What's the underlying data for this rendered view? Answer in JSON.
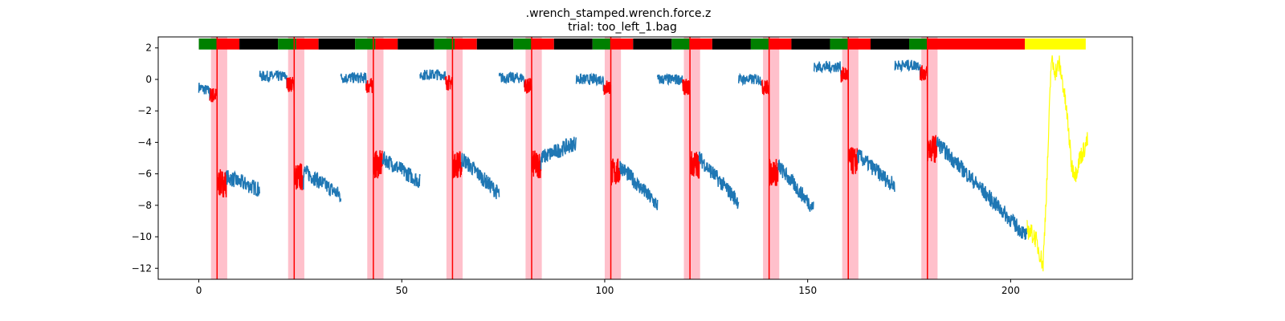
{
  "chart_data": {
    "type": "line",
    "title": ".wrench_stamped.wrench.force.z",
    "subtitle": "trial: too_left_1.bag",
    "xlim": [
      -10,
      230
    ],
    "ylim": [
      -12.7,
      2.7
    ],
    "xticks": [
      0,
      50,
      100,
      150,
      200
    ],
    "yticks": [
      2,
      0,
      -2,
      -4,
      -6,
      -8,
      -10,
      -12
    ],
    "grid": false,
    "colors": {
      "main": "#1f77b4",
      "highlight": "#ff0000",
      "tail": "#ffff00",
      "span": "#ffc0cb",
      "vline": "#ff0000",
      "bar_green": "#008000",
      "bar_red": "#ff0000",
      "bar_black": "#000000",
      "bar_yellow": "#ffff00"
    },
    "cycles": [
      {
        "start": 0.0,
        "pre": -0.5,
        "contact": 4.5,
        "post": -6.2,
        "drift_end": -7.0,
        "jump_x": 15.0,
        "span": [
          3.0,
          7.0
        ]
      },
      {
        "start": 15.0,
        "pre": 0.2,
        "contact": 23.5,
        "post": -5.8,
        "drift_end": -7.4,
        "jump_x": 35.0,
        "span": [
          22.0,
          26.0
        ]
      },
      {
        "start": 35.0,
        "pre": 0.1,
        "contact": 43.0,
        "post": -5.0,
        "drift_end": -6.5,
        "jump_x": 54.5,
        "span": [
          41.5,
          45.5
        ]
      },
      {
        "start": 54.5,
        "pre": 0.3,
        "contact": 62.5,
        "post": -5.0,
        "drift_end": -7.3,
        "jump_x": 74.0,
        "span": [
          61.0,
          65.0
        ]
      },
      {
        "start": 74.0,
        "pre": 0.1,
        "contact": 82.0,
        "post": -5.0,
        "drift_end": -4.0,
        "jump_x": 93.0,
        "span": [
          80.5,
          84.5
        ]
      },
      {
        "start": 93.0,
        "pre": 0.0,
        "contact": 101.5,
        "post": -5.5,
        "drift_end": -8.0,
        "jump_x": 113.0,
        "span": [
          100.0,
          104.0
        ]
      },
      {
        "start": 113.0,
        "pre": 0.0,
        "contact": 121.0,
        "post": -5.0,
        "drift_end": -7.8,
        "jump_x": 133.0,
        "span": [
          119.5,
          123.5
        ]
      },
      {
        "start": 133.0,
        "pre": 0.0,
        "contact": 140.5,
        "post": -5.5,
        "drift_end": -8.2,
        "jump_x": 151.5,
        "span": [
          139.0,
          143.0
        ]
      },
      {
        "start": 151.5,
        "pre": 0.8,
        "contact": 160.0,
        "post": -4.8,
        "drift_end": -6.8,
        "jump_x": 171.5,
        "span": [
          158.5,
          162.5
        ]
      },
      {
        "start": 171.5,
        "pre": 0.9,
        "contact": 179.5,
        "post": -4.0,
        "drift_end": -10.0,
        "jump_x": 204.0,
        "span": [
          178.0,
          182.0
        ]
      }
    ],
    "tail": {
      "x": [
        204,
        206,
        208,
        209,
        210,
        211,
        212,
        213,
        214,
        215,
        216,
        217,
        218,
        219
      ],
      "y": [
        -9.5,
        -10.0,
        -11.8,
        -6.0,
        1.2,
        0.5,
        1.0,
        -0.5,
        -2.5,
        -5.5,
        -6.0,
        -5.0,
        -4.5,
        -3.8
      ]
    },
    "status_bar": [
      {
        "from": 0,
        "to": 4.5,
        "color": "green"
      },
      {
        "from": 4.5,
        "to": 10,
        "color": "red"
      },
      {
        "from": 10,
        "to": 19.5,
        "color": "black"
      },
      {
        "from": 19.5,
        "to": 24,
        "color": "green"
      },
      {
        "from": 24,
        "to": 29.5,
        "color": "red"
      },
      {
        "from": 29.5,
        "to": 38.5,
        "color": "black"
      },
      {
        "from": 38.5,
        "to": 43.5,
        "color": "green"
      },
      {
        "from": 43.5,
        "to": 49,
        "color": "red"
      },
      {
        "from": 49,
        "to": 58,
        "color": "black"
      },
      {
        "from": 58,
        "to": 63,
        "color": "green"
      },
      {
        "from": 63,
        "to": 68.5,
        "color": "red"
      },
      {
        "from": 68.5,
        "to": 77.5,
        "color": "black"
      },
      {
        "from": 77.5,
        "to": 82,
        "color": "green"
      },
      {
        "from": 82,
        "to": 87.5,
        "color": "red"
      },
      {
        "from": 87.5,
        "to": 97,
        "color": "black"
      },
      {
        "from": 97,
        "to": 101.5,
        "color": "green"
      },
      {
        "from": 101.5,
        "to": 107,
        "color": "red"
      },
      {
        "from": 107,
        "to": 116.5,
        "color": "black"
      },
      {
        "from": 116.5,
        "to": 121,
        "color": "green"
      },
      {
        "from": 121,
        "to": 126.5,
        "color": "red"
      },
      {
        "from": 126.5,
        "to": 136,
        "color": "black"
      },
      {
        "from": 136,
        "to": 140.5,
        "color": "green"
      },
      {
        "from": 140.5,
        "to": 146,
        "color": "red"
      },
      {
        "from": 146,
        "to": 155.5,
        "color": "black"
      },
      {
        "from": 155.5,
        "to": 160,
        "color": "green"
      },
      {
        "from": 160,
        "to": 165.5,
        "color": "red"
      },
      {
        "from": 165.5,
        "to": 175,
        "color": "black"
      },
      {
        "from": 175,
        "to": 179.5,
        "color": "green"
      },
      {
        "from": 179.5,
        "to": 203.5,
        "color": "red"
      },
      {
        "from": 203.5,
        "to": 218.5,
        "color": "yellow"
      }
    ]
  }
}
